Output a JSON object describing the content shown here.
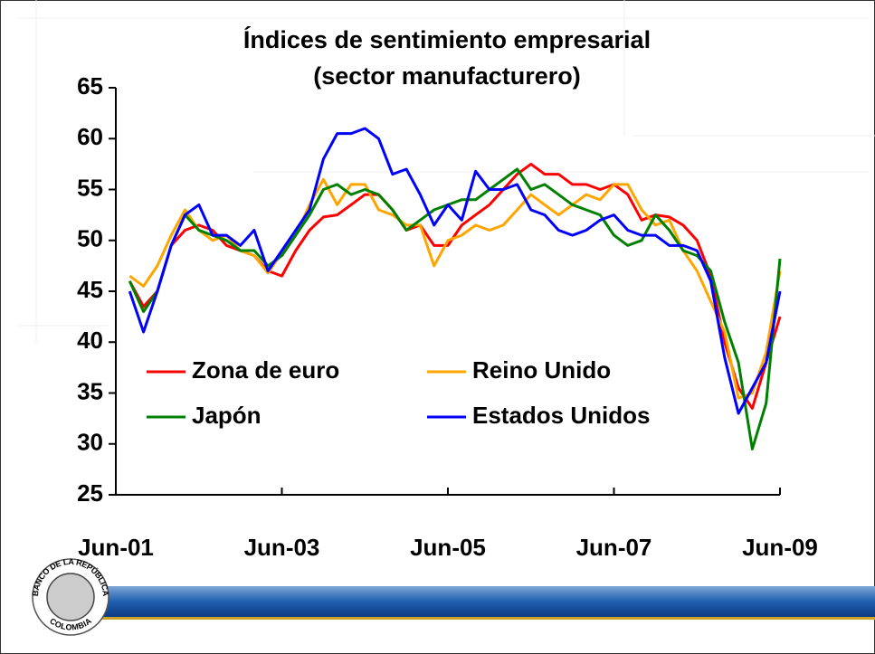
{
  "chart_data": {
    "type": "line",
    "title": "Índices de sentimiento empresarial",
    "subtitle": "(sector manufacturero)",
    "categories": [
      "Jun-01",
      null,
      null,
      null,
      null,
      null,
      null,
      null,
      null,
      null,
      null,
      null,
      "Jun-03",
      null,
      null,
      null,
      null,
      null,
      null,
      null,
      null,
      null,
      null,
      null,
      "Jun-05",
      null,
      null,
      null,
      null,
      null,
      null,
      null,
      null,
      null,
      null,
      null,
      "Jun-07",
      null,
      null,
      null,
      null,
      null,
      null,
      null,
      null,
      null,
      null,
      null,
      "Jun-09"
    ],
    "series": [
      {
        "name": "Zona de euro",
        "color": "#ff0000",
        "values": [
          null,
          46,
          43.5,
          45,
          49.5,
          51,
          51.5,
          51,
          49.5,
          49,
          48.5,
          47,
          46.5,
          49,
          51,
          52.3,
          52.5,
          53.5,
          54.5,
          54.5,
          53,
          51,
          51.5,
          49.5,
          49.5,
          51.5,
          52.5,
          53.5,
          55,
          56.5,
          57.5,
          56.5,
          56.5,
          55.5,
          55.5,
          55,
          55.5,
          54.5,
          52,
          52.5,
          52.3,
          51.5,
          50,
          46.5,
          40,
          35.5,
          33.5,
          38,
          42.5
        ]
      },
      {
        "name": "Reino Unido",
        "color": "#ffa500",
        "values": [
          null,
          46.5,
          45.5,
          47.5,
          50.5,
          53,
          51,
          50,
          50.5,
          49,
          48.5,
          46.8,
          48.8,
          50.5,
          53.5,
          56,
          53.5,
          55.5,
          55.5,
          53,
          52.5,
          51.5,
          51.5,
          47.5,
          50,
          50.5,
          51.5,
          51,
          51.5,
          53,
          54.5,
          53.5,
          52.5,
          53.5,
          54.5,
          54,
          55.5,
          55.5,
          53,
          51.5,
          52,
          49,
          47,
          44,
          41,
          34.5,
          35,
          39,
          47
        ]
      },
      {
        "name": "Japón",
        "color": "#008000",
        "values": [
          null,
          46,
          43,
          45,
          49.5,
          52.5,
          51,
          50.5,
          50,
          49,
          49,
          47.5,
          48.5,
          50.5,
          52.5,
          55,
          55.5,
          54.5,
          55,
          54.5,
          53,
          51,
          52,
          53,
          53.5,
          54,
          54,
          55,
          56,
          57,
          55,
          55.5,
          54.5,
          53.5,
          53,
          52.5,
          50.5,
          49.5,
          50,
          52.5,
          51,
          49,
          48.5,
          47,
          42,
          38,
          29.5,
          34,
          48.2
        ]
      },
      {
        "name": "Estados Unidos",
        "color": "#0000ff",
        "values": [
          null,
          45,
          41,
          45,
          49.5,
          52.5,
          53.5,
          50.5,
          50.5,
          49.5,
          51,
          47,
          49,
          51,
          53,
          58,
          60.5,
          60.5,
          61,
          60,
          56.5,
          57,
          54.5,
          51.5,
          53.5,
          52,
          56.8,
          55,
          55,
          55.5,
          53,
          52.5,
          51,
          50.5,
          51,
          52,
          52.5,
          51,
          50.5,
          50.5,
          49.5,
          49.5,
          49,
          46,
          38.5,
          33,
          35.5,
          38,
          45
        ]
      }
    ],
    "ylim": [
      25,
      65
    ],
    "yticks": [
      25,
      30,
      35,
      40,
      45,
      50,
      55,
      60,
      65
    ],
    "xtick_indices": [
      0,
      12,
      24,
      36,
      48
    ],
    "grid": false
  },
  "logo": {
    "top": "BANCO DE LA REPÚBLICA",
    "bottom": "COLOMBIA"
  }
}
